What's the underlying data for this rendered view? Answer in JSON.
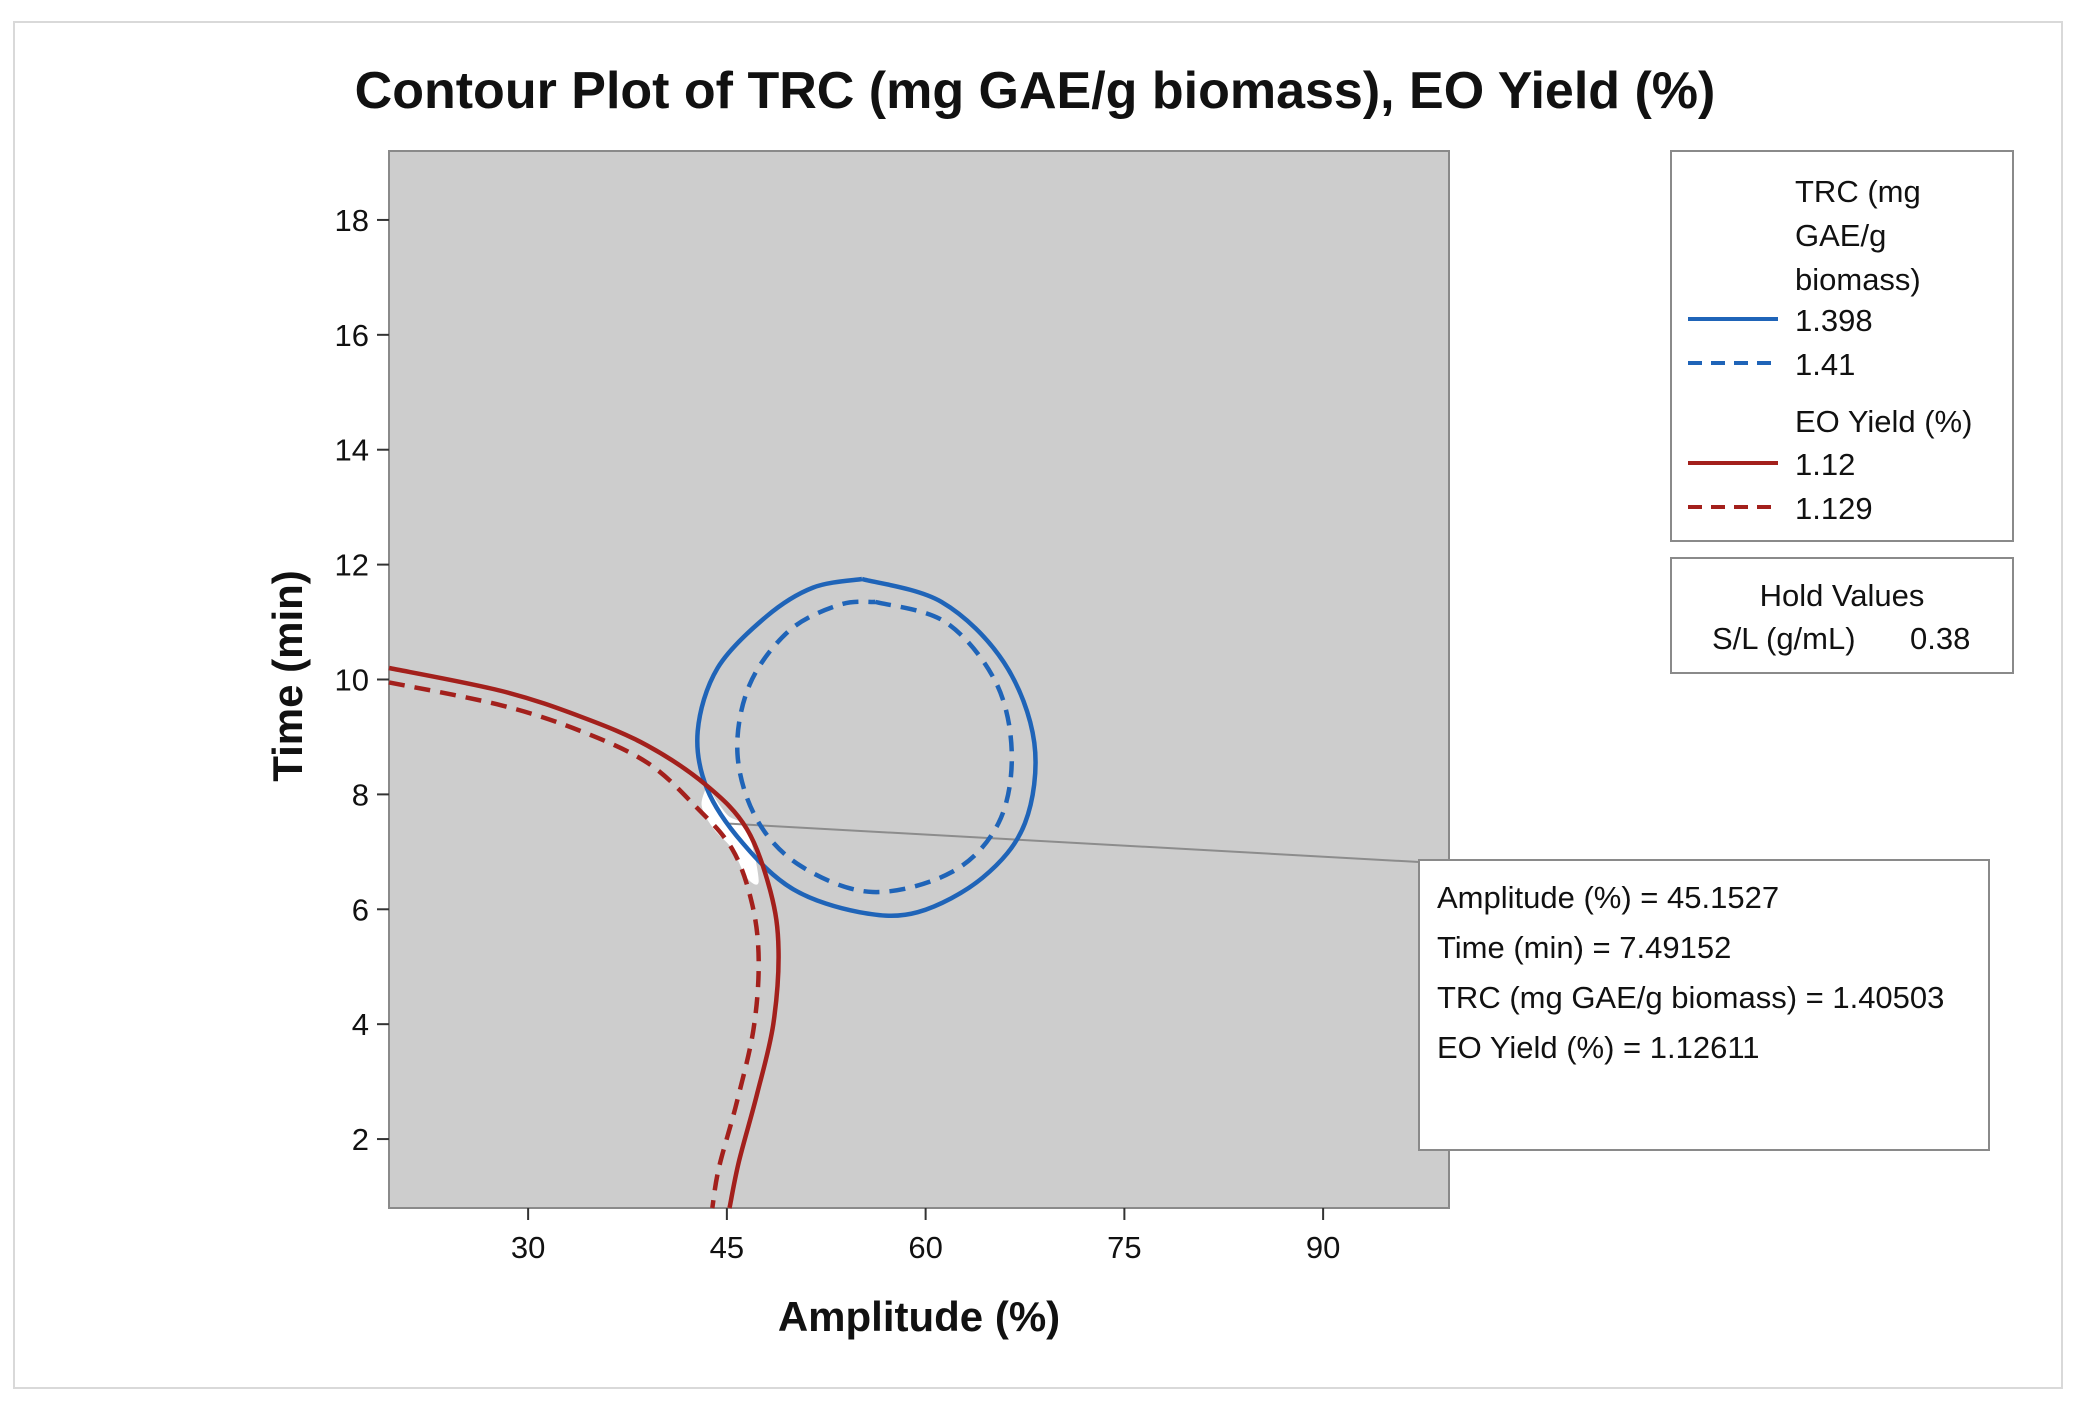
{
  "chart_data": {
    "type": "contour",
    "title": "Contour Plot of TRC (mg GAE/g biomass), EO Yield (%)",
    "xlabel": "Amplitude (%)",
    "ylabel": "Time (min)",
    "xlim": [
      19.5,
      99.5
    ],
    "ylim": [
      0.8,
      19.2
    ],
    "xticks": [
      30,
      45,
      60,
      75,
      90
    ],
    "yticks": [
      2,
      4,
      6,
      8,
      10,
      12,
      14,
      16,
      18
    ],
    "colors": {
      "trc": "#1f64b8",
      "eo": "#a3201c",
      "plot_bg": "#cdcdcd",
      "feasible": "#ffffff",
      "guide": "#8c8c8c"
    },
    "legend": {
      "trc_title": [
        "TRC (mg",
        "GAE/g",
        "biomass)"
      ],
      "eo_title": "EO Yield (%)",
      "entries": [
        {
          "group": "trc",
          "style": "solid",
          "label": "1.398"
        },
        {
          "group": "trc",
          "style": "dashed",
          "label": "1.41"
        },
        {
          "group": "eo",
          "style": "solid",
          "label": "1.12"
        },
        {
          "group": "eo",
          "style": "dashed",
          "label": "1.129"
        }
      ]
    },
    "hold_values": {
      "title": "Hold Values",
      "label": "S/L (g/mL)",
      "value": "0.38"
    },
    "contours": [
      {
        "name": "TRC 1.398",
        "group": "trc",
        "style": "solid",
        "points": [
          [
            55.2,
            11.75
          ],
          [
            61.2,
            11.35
          ],
          [
            65.9,
            10.3
          ],
          [
            68.2,
            8.9
          ],
          [
            67.5,
            7.5
          ],
          [
            64.3,
            6.55
          ],
          [
            59.4,
            5.95
          ],
          [
            55,
            5.95
          ],
          [
            50,
            6.35
          ],
          [
            46.2,
            7.15
          ],
          [
            43.5,
            8.1
          ],
          [
            42.8,
            9.1
          ],
          [
            44.3,
            10.2
          ],
          [
            48,
            11.1
          ],
          [
            51.5,
            11.6
          ],
          [
            55.2,
            11.75
          ]
        ]
      },
      {
        "name": "TRC 1.41",
        "group": "trc",
        "style": "dashed",
        "points": [
          [
            56.2,
            11.35
          ],
          [
            61.5,
            11
          ],
          [
            65.3,
            9.95
          ],
          [
            66.5,
            8.7
          ],
          [
            65.5,
            7.5
          ],
          [
            62,
            6.65
          ],
          [
            56,
            6.3
          ],
          [
            50.6,
            6.75
          ],
          [
            47.3,
            7.55
          ],
          [
            45.8,
            8.7
          ],
          [
            46.7,
            9.9
          ],
          [
            49.7,
            10.85
          ],
          [
            53.5,
            11.3
          ],
          [
            56.2,
            11.35
          ]
        ]
      },
      {
        "name": "EO 1.12",
        "group": "eo",
        "style": "solid",
        "points": [
          [
            19.5,
            10.2
          ],
          [
            28,
            9.8
          ],
          [
            34,
            9.35
          ],
          [
            39,
            8.85
          ],
          [
            43.5,
            8.15
          ],
          [
            46.5,
            7.4
          ],
          [
            48.3,
            6.3
          ],
          [
            48.9,
            5.3
          ],
          [
            48.5,
            4
          ],
          [
            47.3,
            2.8
          ],
          [
            45.9,
            1.6
          ],
          [
            45.2,
            0.8
          ]
        ]
      },
      {
        "name": "EO 1.129",
        "group": "eo",
        "style": "dashed",
        "points": [
          [
            19.5,
            9.95
          ],
          [
            28,
            9.55
          ],
          [
            34,
            9.1
          ],
          [
            39,
            8.55
          ],
          [
            42.6,
            7.8
          ],
          [
            45.4,
            7.05
          ],
          [
            46.9,
            6.1
          ],
          [
            47.4,
            5.1
          ],
          [
            47,
            3.9
          ],
          [
            45.7,
            2.6
          ],
          [
            44.4,
            1.5
          ],
          [
            43.9,
            0.8
          ]
        ]
      }
    ],
    "feasible_region": [
      [
        43.5,
        8.15
      ],
      [
        45,
        7.65
      ],
      [
        46.5,
        7.4
      ],
      [
        47.4,
        6.5
      ],
      [
        46.5,
        6.55
      ],
      [
        45.4,
        7.05
      ],
      [
        44,
        7.4
      ],
      [
        43.1,
        7.8
      ],
      [
        43.5,
        8.15
      ]
    ],
    "crosshair": {
      "x": 45.1527,
      "y": 7.49152
    },
    "annotation": {
      "lines": [
        "Amplitude (%) = 45.1527",
        "Time (min) = 7.49152",
        "TRC (mg GAE/g biomass) = 1.40503",
        "EO Yield (%) = 1.12611"
      ]
    }
  }
}
